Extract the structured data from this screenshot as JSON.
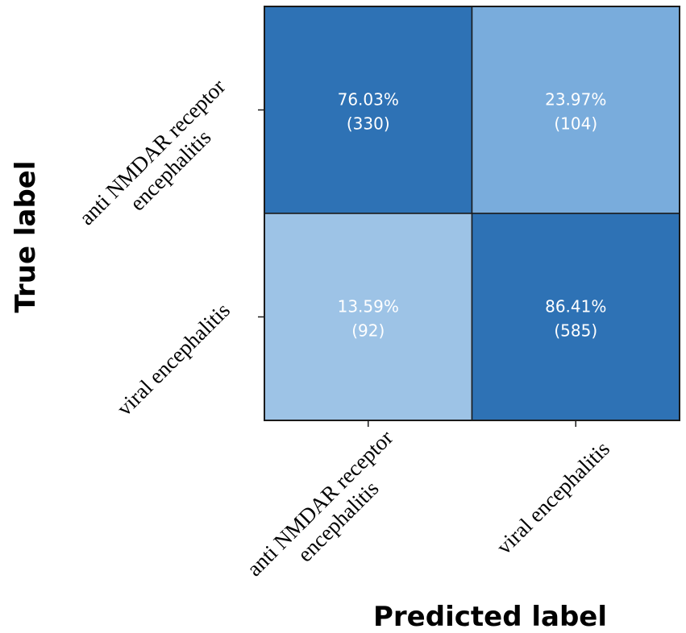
{
  "chart_data": {
    "type": "heatmap",
    "xlabel": "Predicted label",
    "ylabel": "True label",
    "categories": [
      [
        "anti NMDAR receptor",
        "encephalitis"
      ],
      [
        "viral encephalitis"
      ]
    ],
    "matrix": [
      [
        {
          "percent": "76.03%",
          "count": "(330)",
          "value": 0.7603,
          "color": "#2e72b5"
        },
        {
          "percent": "23.97%",
          "count": "(104)",
          "value": 0.2397,
          "color": "#79acdc"
        }
      ],
      [
        {
          "percent": "13.59%",
          "count": "(92)",
          "value": 0.1359,
          "color": "#9dc3e6"
        },
        {
          "percent": "86.41%",
          "count": "(585)",
          "value": 0.8641,
          "color": "#2e72b5"
        }
      ]
    ]
  }
}
